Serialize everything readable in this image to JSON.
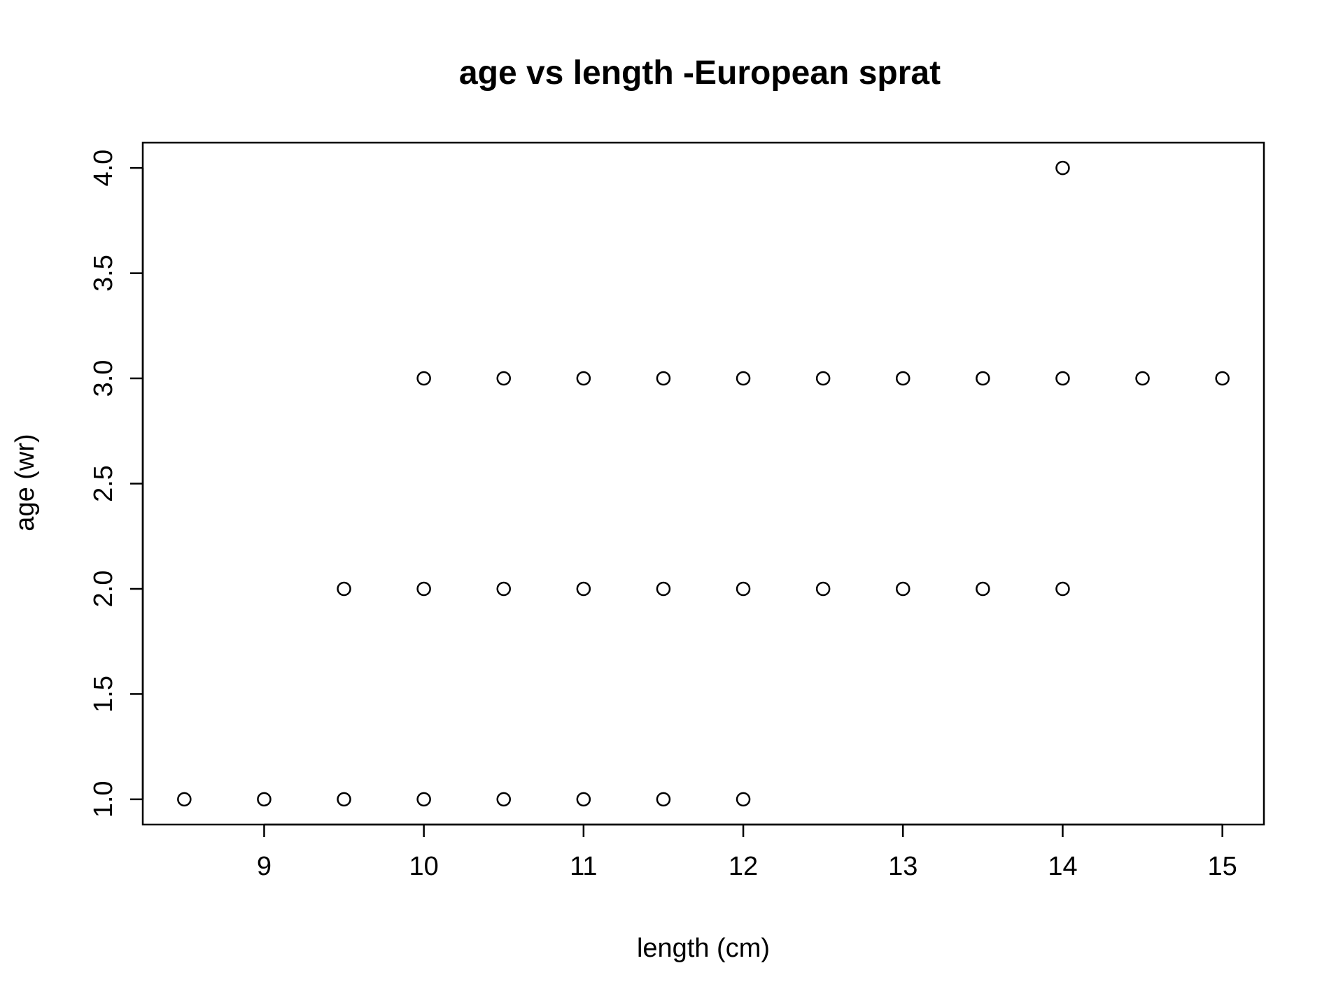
{
  "chart_data": {
    "type": "scatter",
    "title": "age vs length -European sprat",
    "xlabel": "length (cm)",
    "ylabel": "age (wr)",
    "xlim": [
      8.24,
      15.26
    ],
    "ylim": [
      0.88,
      4.12
    ],
    "xticks": [
      9,
      10,
      11,
      12,
      13,
      14,
      15
    ],
    "xtick_labels": [
      "9",
      "10",
      "11",
      "12",
      "13",
      "14",
      "15"
    ],
    "yticks": [
      1.0,
      1.5,
      2.0,
      2.5,
      3.0,
      3.5,
      4.0
    ],
    "ytick_labels": [
      "1.0",
      "1.5",
      "2.0",
      "2.5",
      "3.0",
      "3.5",
      "4.0"
    ],
    "grid": false,
    "legend": "none",
    "marker": "open-circle",
    "color": "#000000",
    "points": [
      {
        "x": 8.5,
        "y": 1
      },
      {
        "x": 9,
        "y": 1
      },
      {
        "x": 9.5,
        "y": 1
      },
      {
        "x": 10,
        "y": 1
      },
      {
        "x": 10.5,
        "y": 1
      },
      {
        "x": 11,
        "y": 1
      },
      {
        "x": 11.5,
        "y": 1
      },
      {
        "x": 12,
        "y": 1
      },
      {
        "x": 9.5,
        "y": 2
      },
      {
        "x": 10,
        "y": 2
      },
      {
        "x": 10.5,
        "y": 2
      },
      {
        "x": 11,
        "y": 2
      },
      {
        "x": 11.5,
        "y": 2
      },
      {
        "x": 12,
        "y": 2
      },
      {
        "x": 12.5,
        "y": 2
      },
      {
        "x": 13,
        "y": 2
      },
      {
        "x": 13.5,
        "y": 2
      },
      {
        "x": 14,
        "y": 2
      },
      {
        "x": 10,
        "y": 3
      },
      {
        "x": 10.5,
        "y": 3
      },
      {
        "x": 11,
        "y": 3
      },
      {
        "x": 11.5,
        "y": 3
      },
      {
        "x": 12,
        "y": 3
      },
      {
        "x": 12.5,
        "y": 3
      },
      {
        "x": 13,
        "y": 3
      },
      {
        "x": 13.5,
        "y": 3
      },
      {
        "x": 14,
        "y": 3
      },
      {
        "x": 14.5,
        "y": 3
      },
      {
        "x": 15,
        "y": 3
      },
      {
        "x": 14,
        "y": 4
      }
    ]
  }
}
